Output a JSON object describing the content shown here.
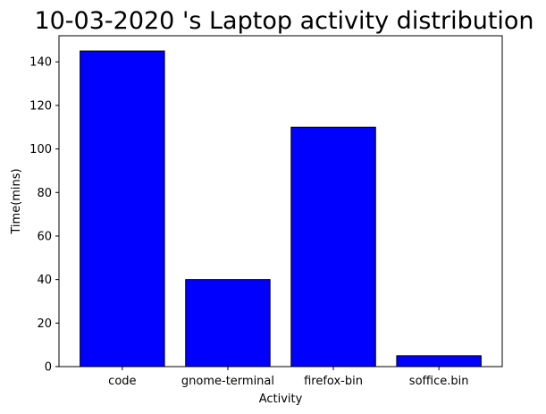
{
  "chart_data": {
    "type": "bar",
    "title": "10-03-2020 's Laptop activity distribution",
    "xlabel": "Activity",
    "ylabel": "Time(mins)",
    "categories": [
      "code",
      "gnome-terminal",
      "firefox-bin",
      "soffice.bin"
    ],
    "values": [
      145,
      40,
      110,
      5
    ],
    "ylim": [
      0,
      152
    ],
    "yticks": [
      0,
      20,
      40,
      60,
      80,
      100,
      120,
      140
    ],
    "grid": false,
    "legend": "none",
    "bar_color": "#0000ff",
    "bar_edge_color": "#000000"
  }
}
